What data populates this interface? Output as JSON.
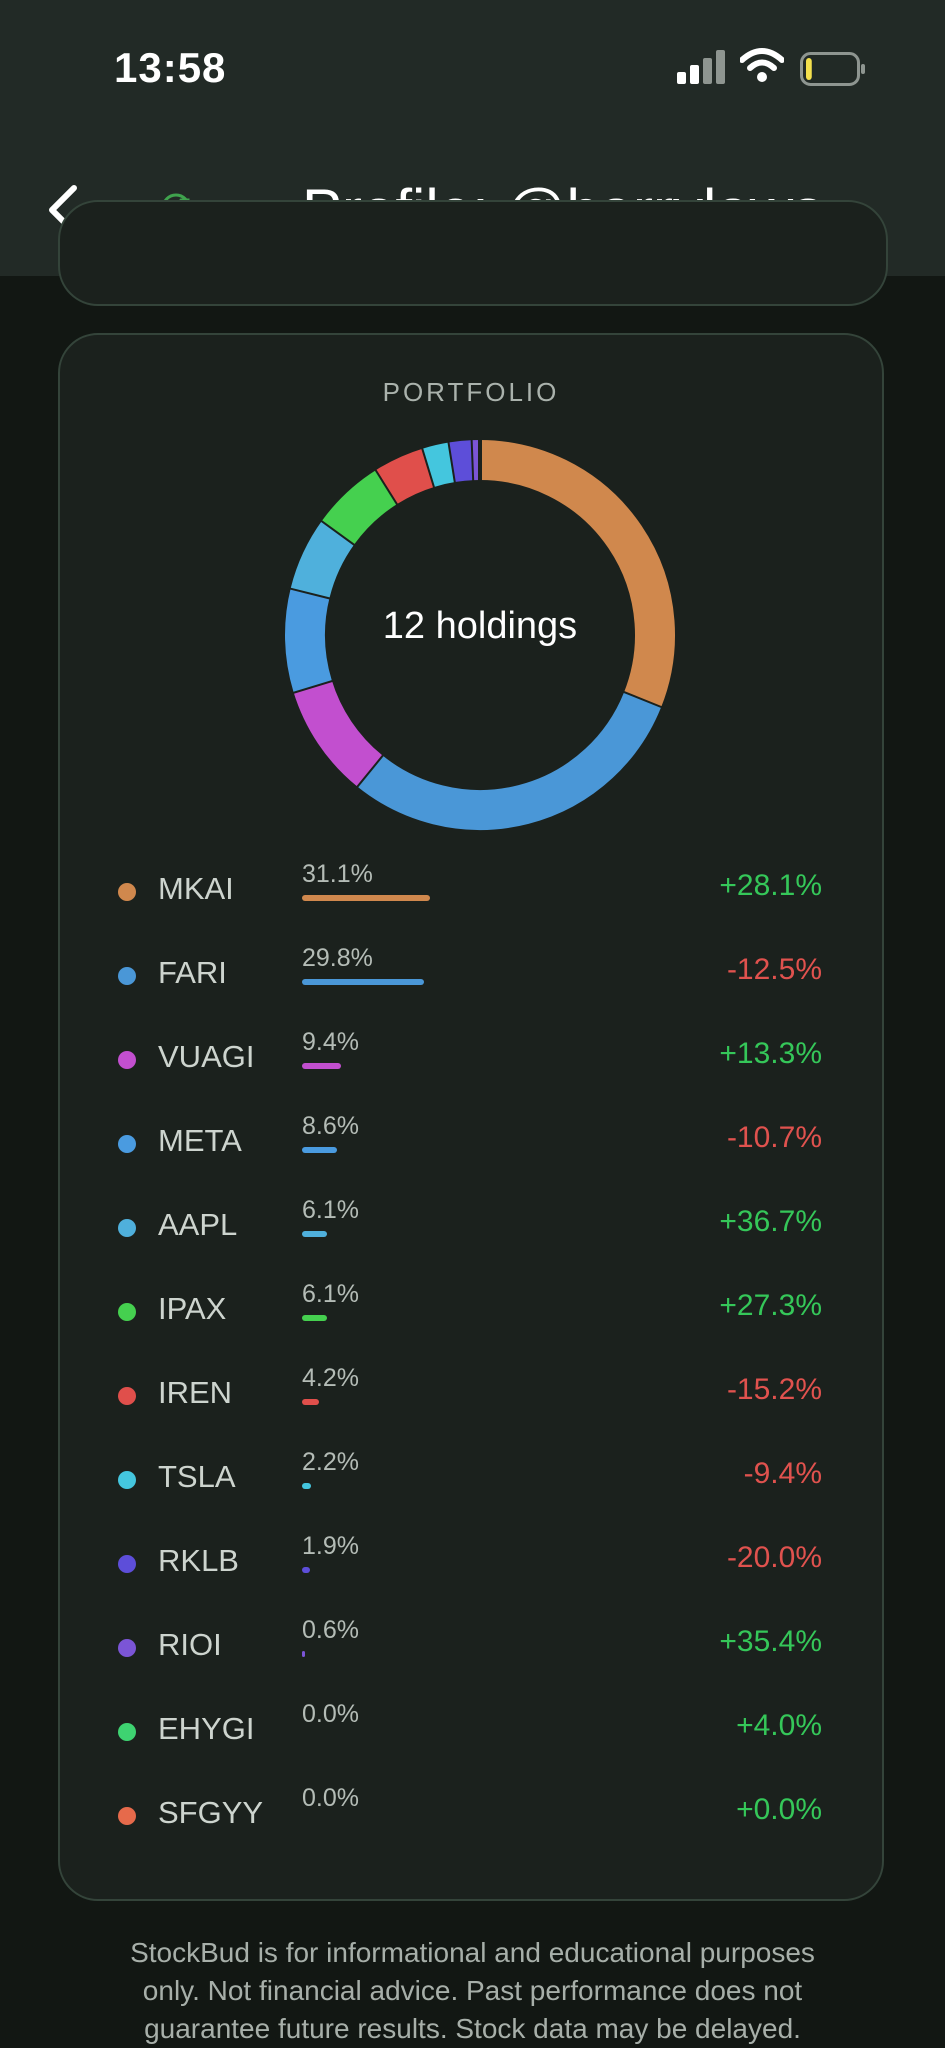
{
  "status_bar": {
    "time": "13:58",
    "icons": [
      "signal-icon",
      "wifi-icon",
      "battery-icon"
    ],
    "battery_level": 0.12
  },
  "nav": {
    "title": "Profile: @harrylaws...",
    "back_icon": "chevron-left-icon",
    "brand_icon": "trend-up-icon"
  },
  "portfolio": {
    "title": "PORTFOLIO",
    "center_label": "12 holdings",
    "holdings": [
      {
        "ticker": "MKAI",
        "weight_label": "31.1%",
        "weight": 31.1,
        "change": "+28.1%",
        "color": "#d0884d",
        "change_color": "#35c759"
      },
      {
        "ticker": "FARI",
        "weight_label": "29.8%",
        "weight": 29.8,
        "change": "-12.5%",
        "color": "#4a97d7",
        "change_color": "#e0524e"
      },
      {
        "ticker": "VUAGI",
        "weight_label": "9.4%",
        "weight": 9.4,
        "change": "+13.3%",
        "color": "#c24fcf",
        "change_color": "#35c759"
      },
      {
        "ticker": "META",
        "weight_label": "8.6%",
        "weight": 8.6,
        "change": "-10.7%",
        "color": "#4a9be0",
        "change_color": "#e0524e"
      },
      {
        "ticker": "AAPL",
        "weight_label": "6.1%",
        "weight": 6.1,
        "change": "+36.7%",
        "color": "#4fb0dc",
        "change_color": "#35c759"
      },
      {
        "ticker": "IPAX",
        "weight_label": "6.1%",
        "weight": 6.1,
        "change": "+27.3%",
        "color": "#45d04f",
        "change_color": "#35c759"
      },
      {
        "ticker": "IREN",
        "weight_label": "4.2%",
        "weight": 4.2,
        "change": "-15.2%",
        "color": "#e04f4b",
        "change_color": "#e0524e"
      },
      {
        "ticker": "TSLA",
        "weight_label": "2.2%",
        "weight": 2.2,
        "change": "-9.4%",
        "color": "#44c6de",
        "change_color": "#e0524e"
      },
      {
        "ticker": "RKLB",
        "weight_label": "1.9%",
        "weight": 1.9,
        "change": "-20.0%",
        "color": "#5d4ed9",
        "change_color": "#e0524e"
      },
      {
        "ticker": "RIOI",
        "weight_label": "0.6%",
        "weight": 0.6,
        "change": "+35.4%",
        "color": "#7b55d6",
        "change_color": "#35c759"
      },
      {
        "ticker": "EHYGI",
        "weight_label": "0.0%",
        "weight": 0.0,
        "change": "+4.0%",
        "color": "#3ed371",
        "change_color": "#35c759"
      },
      {
        "ticker": "SFGYY",
        "weight_label": "0.0%",
        "weight": 0.0,
        "change": "+0.0%",
        "color": "#e66a4b",
        "change_color": "#35c759"
      }
    ]
  },
  "disclaimer": "StockBud is for informational and educational purposes only. Not financial advice. Past performance does not guarantee future results. Stock data may be delayed."
}
